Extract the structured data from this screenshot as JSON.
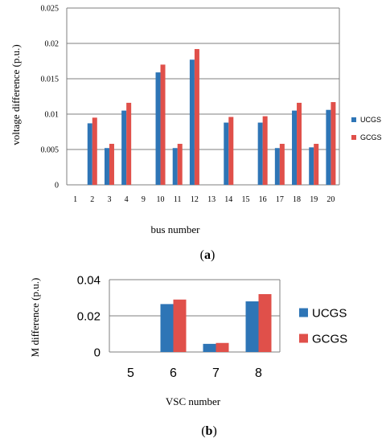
{
  "colors": {
    "UCGS": "#2e75b6",
    "GCGS": "#e0504a",
    "grid": "#7f7f7f",
    "text": "#000000"
  },
  "chart_data": [
    {
      "type": "bar",
      "panel": "(a)",
      "xlabel": "bus number",
      "ylabel": "voltage difference (p.u.)",
      "ylim": [
        0,
        0.025
      ],
      "yticks": [
        "0",
        "0.005",
        "0.01",
        "0.015",
        "0.02",
        "0.025"
      ],
      "grid": true,
      "legend_position": "right",
      "categories": [
        "1",
        "2",
        "3",
        "4",
        "9",
        "10",
        "11",
        "12",
        "13",
        "14",
        "15",
        "16",
        "17",
        "18",
        "19",
        "20"
      ],
      "series": [
        {
          "name": "UCGS",
          "values": [
            0,
            0.0087,
            0.0052,
            0.0105,
            0,
            0.0159,
            0.0052,
            0.0177,
            0,
            0.0088,
            0,
            0.0088,
            0.0052,
            0.0105,
            0.0053,
            0.0106
          ]
        },
        {
          "name": "GCGS",
          "values": [
            0,
            0.0095,
            0.0058,
            0.0116,
            0,
            0.017,
            0.0058,
            0.0192,
            0,
            0.0096,
            0,
            0.0097,
            0.0058,
            0.0116,
            0.0058,
            0.0117
          ]
        }
      ]
    },
    {
      "type": "bar",
      "panel": "(b)",
      "xlabel": "VSC number",
      "ylabel": "M difference (p.u.)",
      "ylim": [
        0,
        0.04
      ],
      "yticks": [
        "0",
        "0.02",
        "0.04"
      ],
      "grid": true,
      "legend_position": "right",
      "categories": [
        "5",
        "6",
        "7",
        "8"
      ],
      "series": [
        {
          "name": "UCGS",
          "values": [
            0,
            0.0265,
            0.0045,
            0.028
          ]
        },
        {
          "name": "GCGS",
          "values": [
            0,
            0.029,
            0.005,
            0.032
          ]
        }
      ]
    }
  ]
}
